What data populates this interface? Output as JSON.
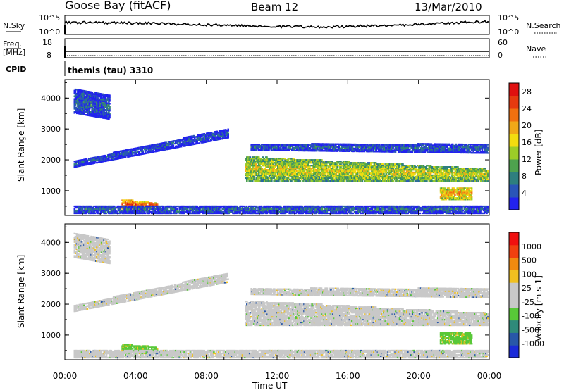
{
  "header": {
    "station": "Goose Bay (fitACF)",
    "beam": "Beam 12",
    "date": "13/Mar/2010"
  },
  "top_panels": {
    "nsky_label": "N.Sky",
    "nsky_ticks": [
      "10^5",
      "10^0"
    ],
    "nsearch_label": "N.Search",
    "nsearch_ticks": [
      "10^5",
      "10^0"
    ],
    "freq_label": "Freq.",
    "freq_unit": "[MHz]",
    "freq_ticks": [
      "18",
      "8"
    ],
    "nave_label": "Nave",
    "nave_ticks": [
      "60",
      "0"
    ],
    "cpid_label": "CPID",
    "cpid_value": "themis (tau) 3310"
  },
  "colors": {
    "power_scale": [
      "#2222ee",
      "#2a55b8",
      "#2e7f7f",
      "#4ea24e",
      "#9ccc28",
      "#f2dc10",
      "#f0a818",
      "#f07010",
      "#e63a10",
      "#e01010"
    ],
    "velocity_scale": [
      "#1a2ad8",
      "#2857a8",
      "#2f8a7a",
      "#58c838",
      "#c8c8c8",
      "#c8c8c8",
      "#f0c020",
      "#f08a10",
      "#f04010",
      "#f01010"
    ],
    "ground_scatter": "#c8c8c8"
  },
  "chart_data": [
    {
      "type": "heatmap",
      "panel": "power",
      "ylabel": "Slant Range [km]",
      "ylim": [
        200,
        4600
      ],
      "yticks": [
        "1000",
        "2000",
        "3000",
        "4000"
      ],
      "xlim_hours": [
        0,
        24
      ],
      "colorbar_label": "Power [dB]",
      "colorbar_ticks": [
        "4",
        "8",
        "12",
        "16",
        "20",
        "24",
        "28"
      ],
      "colorbar_range": [
        0,
        30
      ],
      "features": [
        {
          "t0": 0.5,
          "t1": 9.2,
          "r0": 1750,
          "r1": 1950,
          "r_end0": 2700,
          "r_end1": 3000,
          "level": 5
        },
        {
          "t0": 0.5,
          "t1": 2.5,
          "r0": 3500,
          "r1": 4300,
          "r_end0": 3300,
          "r_end1": 4100,
          "level": 6
        },
        {
          "t0": 10.2,
          "t1": 23.9,
          "r0": 1300,
          "r1": 2100,
          "r_end0": 1300,
          "r_end1": 1700,
          "level": 16
        },
        {
          "t0": 10.5,
          "t1": 23.9,
          "r0": 2300,
          "r1": 2500,
          "r_end0": 2200,
          "r_end1": 2500,
          "level": 6
        },
        {
          "t0": 21.2,
          "t1": 23.0,
          "r0": 700,
          "r1": 1100,
          "r_end0": 700,
          "r_end1": 1100,
          "level": 20
        },
        {
          "t0": 3.2,
          "t1": 5.2,
          "r0": 400,
          "r1": 700,
          "r_end0": 400,
          "r_end1": 600,
          "level": 24
        },
        {
          "t0": 0.5,
          "t1": 23.9,
          "r0": 250,
          "r1": 500,
          "r_end0": 250,
          "r_end1": 500,
          "level": 6
        }
      ]
    },
    {
      "type": "heatmap",
      "panel": "velocity",
      "ylabel": "Slant Range [km]",
      "ylim": [
        200,
        4600
      ],
      "yticks": [
        "1000",
        "2000",
        "3000",
        "4000"
      ],
      "xlabel": "Time UT",
      "xticks": [
        "00:00",
        "04:00",
        "08:00",
        "12:00",
        "16:00",
        "20:00",
        "00:00"
      ],
      "xlim_hours": [
        0,
        24
      ],
      "colorbar_label": "Velocity [m s-1]",
      "colorbar_ticks": [
        "1000",
        "500",
        "100",
        "25",
        "-25",
        "-100",
        "-500",
        "-1000"
      ],
      "features": [
        {
          "t0": 0.5,
          "t1": 9.2,
          "r0": 1750,
          "r1": 1950,
          "r_end0": 2700,
          "r_end1": 3000,
          "kind": "ground"
        },
        {
          "t0": 0.5,
          "t1": 2.5,
          "r0": 3500,
          "r1": 4300,
          "r_end0": 3300,
          "r_end1": 4100,
          "kind": "ground"
        },
        {
          "t0": 10.2,
          "t1": 23.9,
          "r0": 1300,
          "r1": 2100,
          "r_end0": 1300,
          "r_end1": 1700,
          "kind": "ground"
        },
        {
          "t0": 10.5,
          "t1": 23.9,
          "r0": 2300,
          "r1": 2500,
          "r_end0": 2200,
          "r_end1": 2500,
          "kind": "ground"
        },
        {
          "t0": 21.2,
          "t1": 23.0,
          "r0": 700,
          "r1": 1100,
          "r_end0": 700,
          "r_end1": 1100,
          "kind": "green"
        },
        {
          "t0": 3.2,
          "t1": 5.2,
          "r0": 400,
          "r1": 700,
          "r_end0": 400,
          "r_end1": 600,
          "kind": "green"
        },
        {
          "t0": 0.5,
          "t1": 23.9,
          "r0": 250,
          "r1": 500,
          "r_end0": 250,
          "r_end1": 500,
          "kind": "ground"
        }
      ]
    }
  ]
}
